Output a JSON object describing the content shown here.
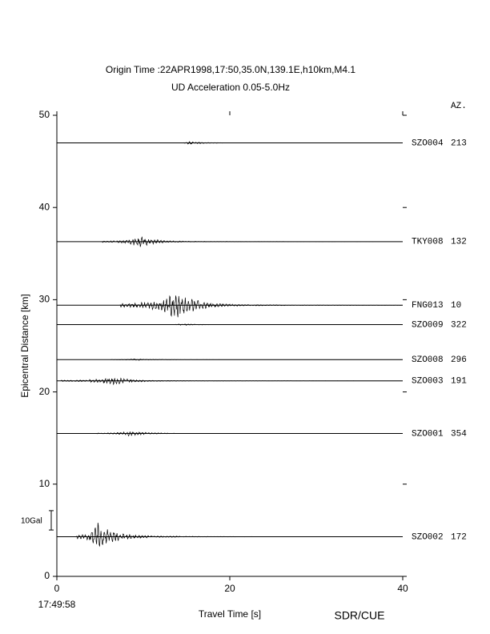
{
  "chart_data": {
    "type": "record-section",
    "title": "Origin Time :22APR1998,17:50,35.0N,139.1E,h10km,M4.1",
    "subtitle": "UD Acceleration 0.05-5.0Hz",
    "azimuth_header": "AZ.",
    "x_label": "Travel Time [s]",
    "y_label": "Epicentral Distance [km]",
    "origin_label": "17:49:58",
    "credit": "SDR/CUE",
    "scale_bar": {
      "label": "10Gal",
      "size": 2.1
    },
    "xlim": [
      0,
      40
    ],
    "xticks": [
      0,
      20,
      40
    ],
    "ylim": [
      0,
      50
    ],
    "yticks": [
      0,
      10,
      20,
      30,
      40,
      50
    ],
    "color": "#000000",
    "traces": [
      {
        "station": "SZO004",
        "azimuth": "213",
        "distance": 47.0,
        "start": 14.4,
        "peak": 15.2,
        "amplitude": 0.15
      },
      {
        "station": "TKY008",
        "azimuth": "132",
        "distance": 36.3,
        "start": 5.2,
        "peak": 9.5,
        "amplitude": 0.6
      },
      {
        "station": "FNG013",
        "azimuth": "10",
        "distance": 29.4,
        "start": 7.3,
        "peak": 14.0,
        "amplitude": 1.6
      },
      {
        "station": "SZO009",
        "azimuth": "322",
        "distance": 27.3,
        "start": 12.5,
        "peak": 14.5,
        "amplitude": 0.1
      },
      {
        "station": "SZO008",
        "azimuth": "296",
        "distance": 23.5,
        "start": 6.2,
        "peak": 9.0,
        "amplitude": 0.1
      },
      {
        "station": "SZO003",
        "azimuth": "191",
        "distance": 21.2,
        "start": 0.5,
        "peak": 6.5,
        "amplitude": 0.5
      },
      {
        "station": "SZO001",
        "azimuth": "354",
        "distance": 15.5,
        "start": 4.6,
        "peak": 8.3,
        "amplitude": 0.3
      },
      {
        "station": "SZO002",
        "azimuth": "172",
        "distance": 4.3,
        "start": 2.3,
        "peak": 4.7,
        "amplitude": 1.5
      }
    ]
  }
}
